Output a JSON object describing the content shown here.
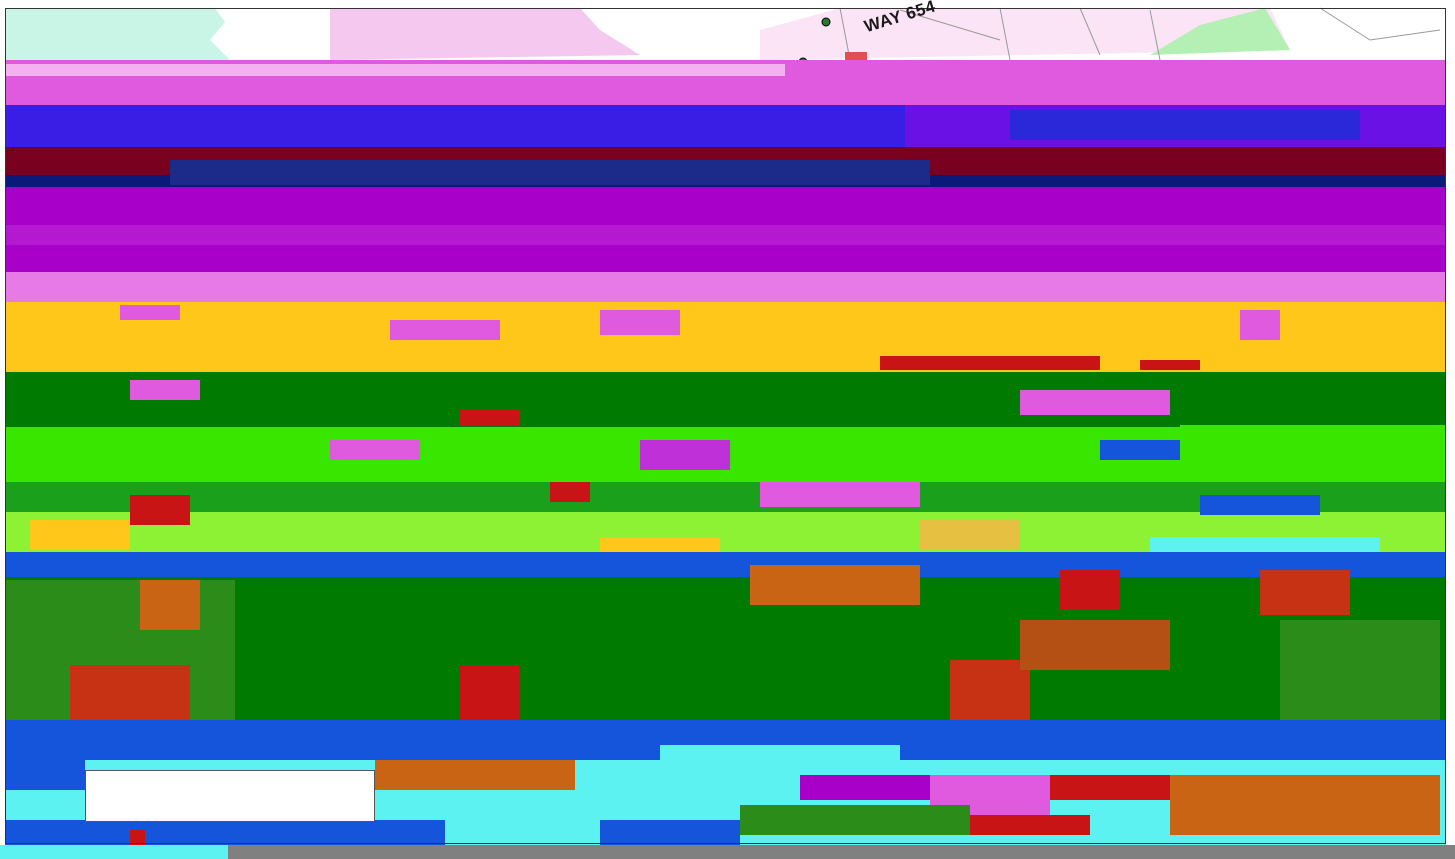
{
  "map": {
    "road_label": "WAY 654",
    "colors": {
      "magenta": "#e05ae0",
      "purple": "#a800c8",
      "blue_violet": "#3a1ee6",
      "dark_red": "#7a0020",
      "navy": "#0a1a7a",
      "orange": "#ffc71a",
      "dark_green": "#007a00",
      "bright_green": "#39e600",
      "lime": "#8cf233",
      "red": "#c81414",
      "blue": "#1455dc",
      "cyan": "#5cf2f2",
      "pink_light": "#f5c8f0",
      "mint": "#c8f5e6",
      "light_green": "#b4f0b4",
      "gray": "#808080"
    }
  }
}
